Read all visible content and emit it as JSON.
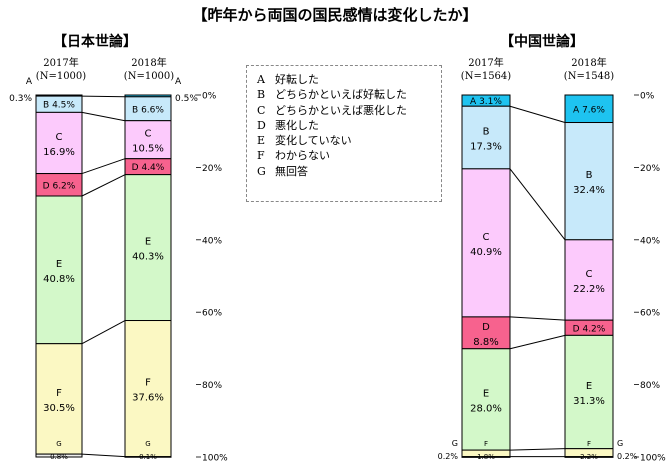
{
  "title": "【昨年から両国の国民感情は変化したか】",
  "legend": [
    {
      "code": "A",
      "label": "好転した"
    },
    {
      "code": "B",
      "label": "どちらかといえば好転した"
    },
    {
      "code": "C",
      "label": "どちらかといえば悪化した"
    },
    {
      "code": "D",
      "label": "悪化した"
    },
    {
      "code": "E",
      "label": "変化していない"
    },
    {
      "code": "F",
      "label": "わからない"
    },
    {
      "code": "G",
      "label": "無回答"
    }
  ],
  "colors": {
    "A": "#1ec3f0",
    "B": "#c7e9fa",
    "C": "#fccafc",
    "D": "#f7628e",
    "E": "#d3f8c9",
    "F": "#fbf8c3",
    "G": "#eeeeee"
  },
  "chart_data": [
    {
      "type": "bar",
      "stacked": true,
      "title": "【日本世論】",
      "categories": [
        "2017年\n(N=1000)",
        "2018年\n(N=1000)"
      ],
      "ylim": [
        0,
        100
      ],
      "yticks": [
        "0%",
        "20%",
        "40%",
        "60%",
        "80%",
        "100%"
      ],
      "series": [
        {
          "name": "A",
          "values": [
            0.3,
            0.5
          ]
        },
        {
          "name": "B",
          "values": [
            4.5,
            6.6
          ]
        },
        {
          "name": "C",
          "values": [
            16.9,
            10.5
          ]
        },
        {
          "name": "D",
          "values": [
            6.2,
            4.4
          ]
        },
        {
          "name": "E",
          "values": [
            40.8,
            40.3
          ]
        },
        {
          "name": "F",
          "values": [
            30.5,
            37.6
          ]
        },
        {
          "name": "G",
          "values": [
            0.8,
            0.1
          ]
        }
      ]
    },
    {
      "type": "bar",
      "stacked": true,
      "title": "【中国世論】",
      "categories": [
        "2017年\n(N=1564)",
        "2018年\n(N=1548)"
      ],
      "ylim": [
        0,
        100
      ],
      "yticks": [
        "0%",
        "20%",
        "40%",
        "60%",
        "80%",
        "100%"
      ],
      "series": [
        {
          "name": "A",
          "values": [
            3.1,
            7.6
          ]
        },
        {
          "name": "B",
          "values": [
            17.3,
            32.4
          ]
        },
        {
          "name": "C",
          "values": [
            40.9,
            22.2
          ]
        },
        {
          "name": "D",
          "values": [
            8.8,
            4.2
          ]
        },
        {
          "name": "E",
          "values": [
            28.0,
            31.3
          ]
        },
        {
          "name": "F",
          "values": [
            1.8,
            2.2
          ]
        },
        {
          "name": "G",
          "values": [
            0.2,
            0.2
          ]
        }
      ]
    }
  ]
}
